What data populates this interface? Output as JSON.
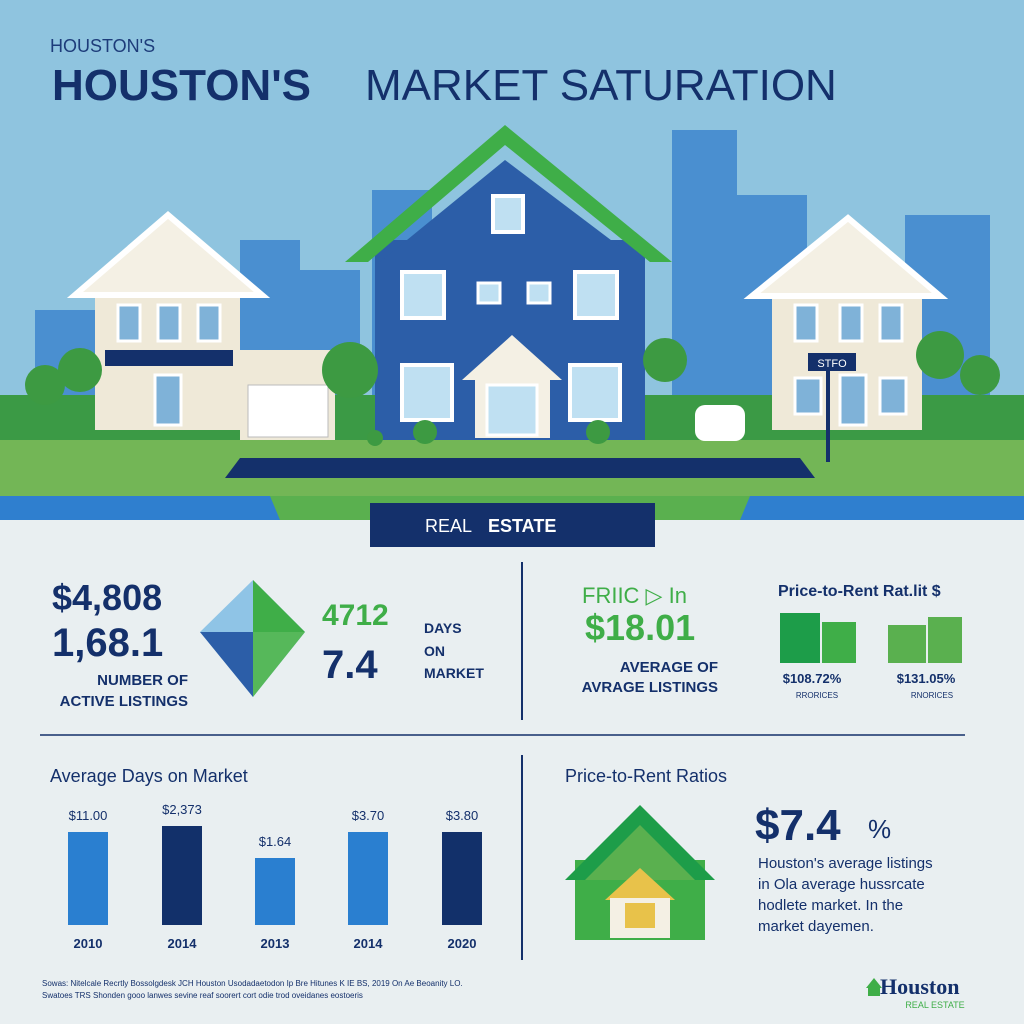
{
  "header": {
    "kicker": "HOUSTON'S",
    "title_bold": "HOUSTON'S",
    "title_light": "MARKET SATURATION"
  },
  "scene": {
    "sign": "STFO"
  },
  "banner": {
    "text_light": "REAL",
    "text_bold": "ESTATE"
  },
  "listings": {
    "value_1": "$4,808",
    "value_2": "1,68.1",
    "label_1": "NUMBER OF",
    "label_2": "ACTIVE LISTINGS",
    "value_3": "4712",
    "value_4": "7.4",
    "days_1": "DAYS",
    "days_2": "ON",
    "days_3": "MARKET"
  },
  "price": {
    "heading": "FRIIC ▷ In",
    "value": "$18.01",
    "label_1": "AVERAGE OF",
    "label_2": "AVRAGE LISTINGS"
  },
  "price_to_rent_small": {
    "title": "Price-to-Rent Rat.lit $",
    "items": [
      {
        "value": "$108.72%",
        "label": "RRORICES"
      },
      {
        "value": "$131.05%",
        "label": "RNORICES"
      }
    ]
  },
  "days_chart": {
    "title": "Average Days on Market",
    "bars": [
      {
        "label": "$11.00",
        "year": "2010"
      },
      {
        "label": "$2,373",
        "year": "2014"
      },
      {
        "label": "$1.64",
        "year": "2013"
      },
      {
        "label": "$3.70",
        "year": "2014"
      },
      {
        "label": "$3.80",
        "year": "2020"
      }
    ]
  },
  "ratios": {
    "title": "Price-to-Rent Ratios",
    "value": "$7.4",
    "unit": "%",
    "text": [
      "Houston's average listings",
      "in Ola average hussrcate",
      "hodlete market. In the",
      "market dayemen."
    ]
  },
  "footer": {
    "source_1": "Sowas: Nitelcale Recrtly Bossolgdesk JCH Houston Usodadaetodon Ip Bre Hitunes K IE BS, 2019 On Ae Beoanity LO.",
    "source_2": "Swatoes TRS Shonden gooo lanwes sevine reaf soorert cort odie trod oveidanes eostoeris",
    "logo": "Houston",
    "logo_sub": "REAL ESTATE"
  }
}
